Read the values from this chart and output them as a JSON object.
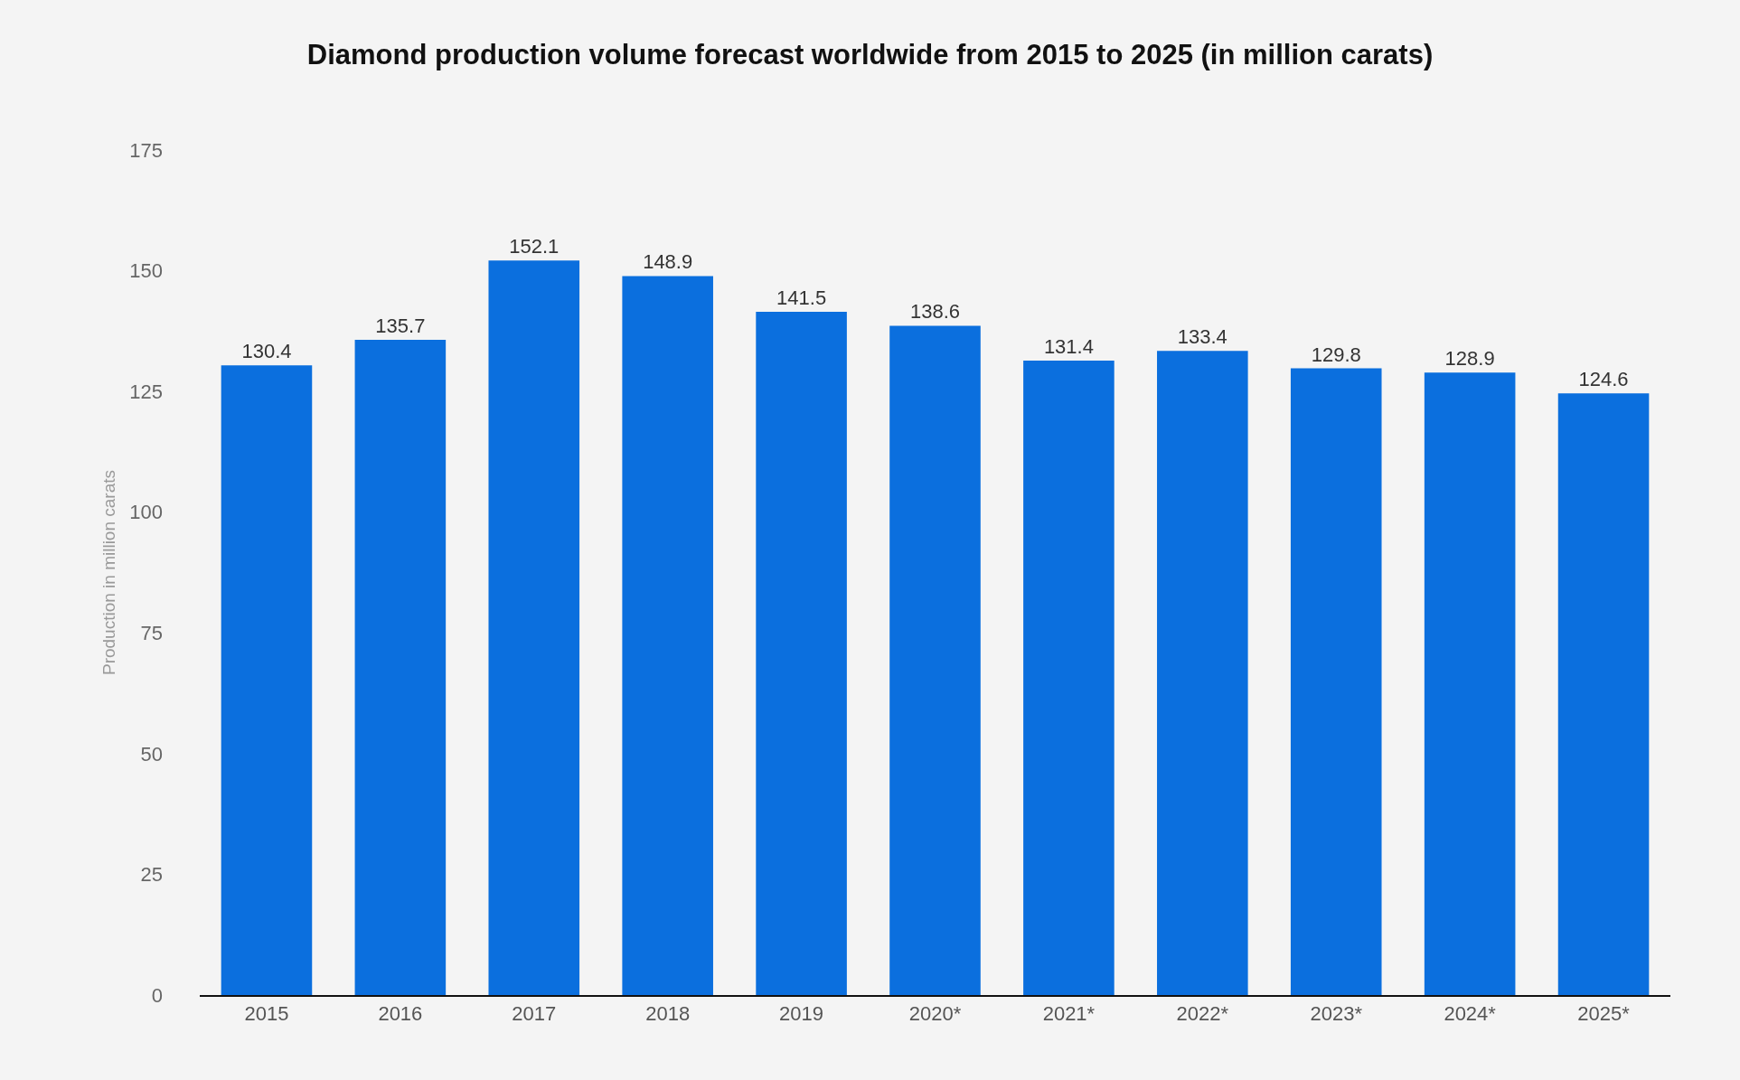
{
  "chart_data": {
    "type": "bar",
    "title": "Diamond production volume forecast worldwide from 2015 to 2025 (in million carats)",
    "ylabel": "Production in million carats",
    "categories": [
      "2015",
      "2016",
      "2017",
      "2018",
      "2019",
      "2020*",
      "2021*",
      "2022*",
      "2023*",
      "2024*",
      "2025*"
    ],
    "values": [
      130.4,
      135.7,
      152.1,
      148.9,
      141.5,
      138.6,
      131.4,
      133.4,
      129.8,
      128.9,
      124.6
    ],
    "color": "#0b6fde",
    "ylim": [
      0,
      175
    ],
    "yticks": [
      0,
      25,
      50,
      75,
      100,
      125,
      150,
      175
    ],
    "grid": false,
    "data_labels": true
  }
}
